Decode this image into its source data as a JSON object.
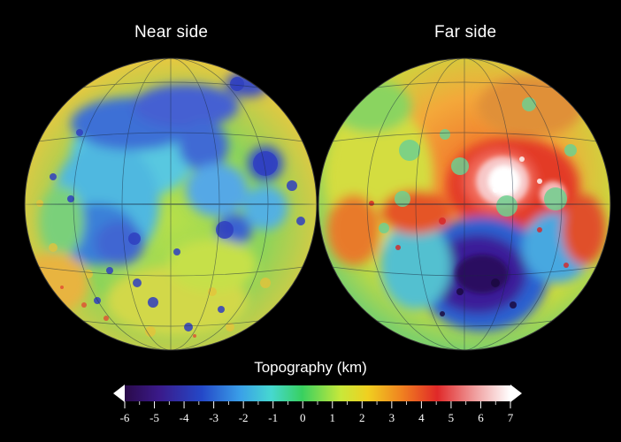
{
  "hemispheres": [
    {
      "id": "near",
      "title": "Near side"
    },
    {
      "id": "far",
      "title": "Far side"
    }
  ],
  "colorbar": {
    "title": "Topography (km)",
    "min": -6,
    "max": 7,
    "tick_labels": [
      "-6",
      "-5",
      "-4",
      "-3",
      "-2",
      "-1",
      "0",
      "1",
      "2",
      "3",
      "4",
      "5",
      "6",
      "7"
    ],
    "colors": [
      "#2a0a4a",
      "#3a1a8a",
      "#2448c8",
      "#3aa0e8",
      "#46d8d0",
      "#38d060",
      "#c8e83a",
      "#f0d020",
      "#f08020",
      "#e02828",
      "#f0a0a0",
      "#ffffff"
    ]
  }
}
